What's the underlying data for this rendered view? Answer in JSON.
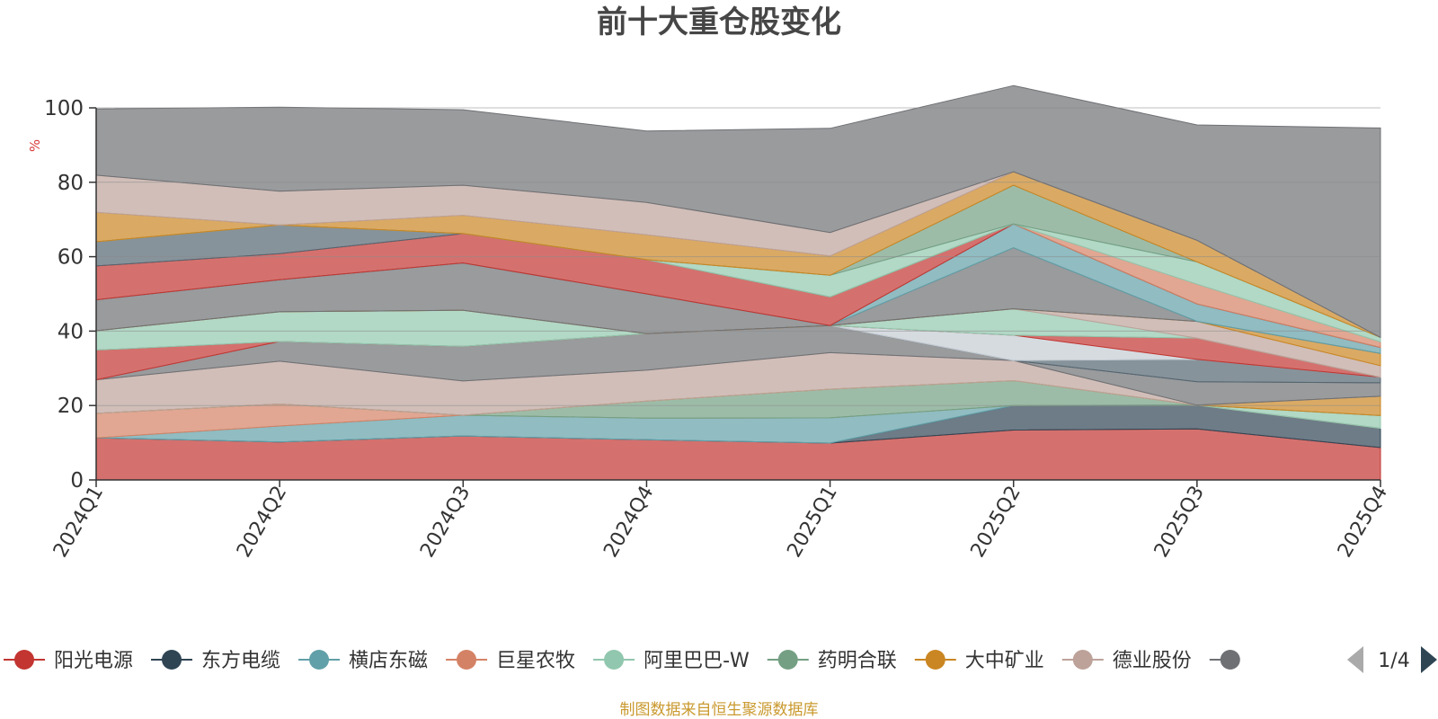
{
  "chart_data": {
    "type": "area",
    "stacked": true,
    "title": "前十大重仓股变化",
    "ylabel": "%",
    "xlabel": "",
    "ylim": [
      0,
      100
    ],
    "yticks": [
      0,
      20,
      40,
      60,
      80,
      100
    ],
    "grid": true,
    "categories": [
      "2024Q1",
      "2024Q2",
      "2024Q3",
      "2024Q4",
      "2025Q1",
      "2025Q2",
      "2025Q3",
      "2025Q4"
    ],
    "series": [
      {
        "name": "阳光电源",
        "color": "#c23531",
        "values": [
          11.3,
          10.2,
          11.8,
          10.8,
          9.9,
          13.4,
          13.7,
          8.7
        ]
      },
      {
        "name": "东方电缆",
        "color": "#2f4554",
        "values": [
          0,
          0,
          0,
          0,
          0,
          6.6,
          6.4,
          5.2
        ]
      },
      {
        "name": "横店东磁",
        "color": "#61a0a8",
        "values": [
          0,
          4.3,
          5.6,
          5.8,
          6.8,
          0,
          0,
          0
        ]
      },
      {
        "name": "巨星农牧",
        "color": "#d48265",
        "values": [
          6.6,
          5.9,
          0,
          0,
          0,
          0,
          0,
          0
        ]
      },
      {
        "name": "阿里巴巴-W",
        "color": "#91c7ae",
        "values": [
          0,
          0,
          0,
          0,
          0,
          0,
          0,
          3.4
        ]
      },
      {
        "name": "药明合联",
        "color": "#749f83",
        "values": [
          0,
          0,
          0,
          4.6,
          7.7,
          6.7,
          0,
          0
        ]
      },
      {
        "name": "大中矿业",
        "color": "#ca8622",
        "values": [
          0,
          0,
          0,
          0,
          0,
          0,
          0,
          5.2
        ]
      },
      {
        "name": "德业股份",
        "color": "#bda29a",
        "values": [
          9,
          11.5,
          9.2,
          8.3,
          9.8,
          5.4,
          0,
          0
        ]
      },
      {
        "name": "",
        "color": "#6e7074",
        "values": [
          0,
          5.3,
          9.3,
          9.8,
          7.3,
          0,
          6.3,
          3.6
        ]
      },
      {
        "name": "",
        "color": "#546570",
        "values": [
          0,
          0,
          0,
          0,
          0,
          0,
          6,
          1.5
        ]
      },
      {
        "name": "",
        "color": "#c4ccd3",
        "values": [
          0,
          0,
          0,
          0,
          0,
          6.8,
          0,
          0
        ]
      },
      {
        "name": "",
        "color": "#c23531",
        "values": [
          8,
          0,
          0,
          0,
          0,
          0,
          5.7,
          0
        ]
      },
      {
        "name": "",
        "color": "#91c7ae",
        "values": [
          5.2,
          8,
          9.7,
          0,
          0,
          7.1,
          0,
          0
        ]
      },
      {
        "name": "",
        "color": "#bda29a",
        "values": [
          0,
          0,
          0,
          0,
          0,
          0,
          4.5,
          3.1
        ]
      },
      {
        "name": "",
        "color": "#ca8622",
        "values": [
          0,
          0,
          0,
          0,
          0,
          0,
          0,
          3.3
        ]
      },
      {
        "name": "",
        "color": "#6e7074",
        "values": [
          8.3,
          8.6,
          12.7,
          10.7,
          0,
          16.4,
          0,
          0
        ]
      },
      {
        "name": "",
        "color": "#61a0a8",
        "values": [
          0,
          0,
          0,
          0,
          0,
          6.4,
          4.7,
          1.6
        ]
      },
      {
        "name": "",
        "color": "#c23531",
        "values": [
          9.1,
          7,
          7.9,
          9.2,
          7.7,
          0,
          0,
          0
        ]
      },
      {
        "name": "",
        "color": "#546570",
        "values": [
          6.5,
          7.7,
          0,
          0,
          0,
          0,
          0,
          0
        ]
      },
      {
        "name": "",
        "color": "#d48265",
        "values": [
          0,
          0,
          0,
          0,
          0,
          0,
          5.3,
          1.5
        ]
      },
      {
        "name": "",
        "color": "#91c7ae",
        "values": [
          0,
          0,
          0,
          0,
          5.8,
          0,
          6,
          1.2
        ]
      },
      {
        "name": "",
        "color": "#749f83",
        "values": [
          0,
          0,
          0,
          0,
          0,
          10.4,
          0,
          0
        ]
      },
      {
        "name": "",
        "color": "#ca8622",
        "values": [
          7.9,
          0,
          4.9,
          6.7,
          5.2,
          3.6,
          5.8,
          0
        ]
      },
      {
        "name": "",
        "color": "#bda29a",
        "values": [
          10,
          9.1,
          8.1,
          8.7,
          6.3,
          0,
          0,
          0
        ]
      },
      {
        "name": "",
        "color": "#6e7074",
        "values": [
          17.8,
          22.6,
          20.3,
          19.2,
          28,
          23.2,
          31,
          56.3
        ]
      }
    ],
    "legend": {
      "position": "bottom",
      "items": [
        "阳光电源",
        "东方电缆",
        "横店东磁",
        "巨星农牧",
        "阿里巴巴-W",
        "药明合联",
        "大中矿业",
        "德业股份"
      ],
      "item_colors": [
        "#c23531",
        "#2f4554",
        "#61a0a8",
        "#d48265",
        "#91c7ae",
        "#749f83",
        "#ca8622",
        "#bda29a"
      ],
      "overflow_color": "#6e7074",
      "page": "1/4"
    },
    "source": "制图数据来自恒生聚源数据库"
  }
}
